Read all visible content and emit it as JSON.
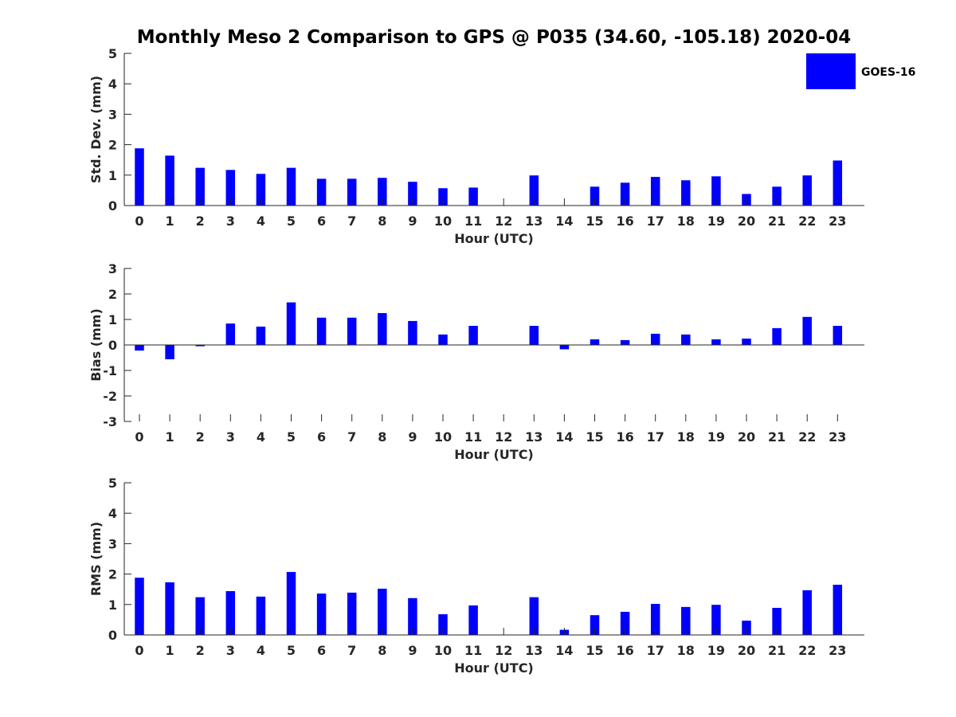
{
  "figure": {
    "title": "Monthly Meso 2 Comparison to GPS @ P035 (34.60, -105.18) 2020-04"
  },
  "legend": {
    "label": "GOES-16",
    "color": "#0000ff"
  },
  "chart_data": [
    {
      "type": "bar",
      "xlabel": "Hour (UTC)",
      "ylabel": "Std. Dev. (mm)",
      "ylim": [
        0,
        5
      ],
      "yticks": [
        0,
        1,
        2,
        3,
        4,
        5
      ],
      "categories": [
        "0",
        "1",
        "2",
        "3",
        "4",
        "5",
        "6",
        "7",
        "8",
        "9",
        "10",
        "11",
        "12",
        "13",
        "14",
        "15",
        "16",
        "17",
        "18",
        "19",
        "20",
        "21",
        "22",
        "23"
      ],
      "series": [
        {
          "name": "GOES-16",
          "color": "#0000ff",
          "values": [
            1.88,
            1.64,
            1.24,
            1.17,
            1.04,
            1.24,
            0.88,
            0.88,
            0.91,
            0.78,
            0.57,
            0.59,
            null,
            0.99,
            null,
            0.62,
            0.75,
            0.94,
            0.83,
            0.96,
            0.38,
            0.62,
            0.99,
            1.48
          ]
        }
      ]
    },
    {
      "type": "bar",
      "xlabel": "Hour (UTC)",
      "ylabel": "Bias (mm)",
      "ylim": [
        -3,
        3
      ],
      "yticks": [
        -3,
        -2,
        -1,
        0,
        1,
        2,
        3
      ],
      "categories": [
        "0",
        "1",
        "2",
        "3",
        "4",
        "5",
        "6",
        "7",
        "8",
        "9",
        "10",
        "11",
        "12",
        "13",
        "14",
        "15",
        "16",
        "17",
        "18",
        "19",
        "20",
        "21",
        "22",
        "23"
      ],
      "series": [
        {
          "name": "GOES-16",
          "color": "#0000ff",
          "values": [
            -0.22,
            -0.56,
            -0.05,
            0.84,
            0.72,
            1.67,
            1.07,
            1.07,
            1.25,
            0.94,
            0.41,
            0.75,
            null,
            0.75,
            -0.17,
            0.22,
            0.19,
            0.44,
            0.41,
            0.22,
            0.25,
            0.66,
            1.1,
            0.75
          ]
        }
      ]
    },
    {
      "type": "bar",
      "xlabel": "Hour (UTC)",
      "ylabel": "RMS (mm)",
      "ylim": [
        0,
        5
      ],
      "yticks": [
        0,
        1,
        2,
        3,
        4,
        5
      ],
      "categories": [
        "0",
        "1",
        "2",
        "3",
        "4",
        "5",
        "6",
        "7",
        "8",
        "9",
        "10",
        "11",
        "12",
        "13",
        "14",
        "15",
        "16",
        "17",
        "18",
        "19",
        "20",
        "21",
        "22",
        "23"
      ],
      "series": [
        {
          "name": "GOES-16",
          "color": "#0000ff",
          "values": [
            1.88,
            1.73,
            1.24,
            1.44,
            1.26,
            2.07,
            1.36,
            1.39,
            1.52,
            1.21,
            0.68,
            0.97,
            null,
            1.24,
            0.17,
            0.65,
            0.76,
            1.02,
            0.92,
            0.99,
            0.47,
            0.89,
            1.47,
            1.65
          ]
        }
      ]
    }
  ]
}
